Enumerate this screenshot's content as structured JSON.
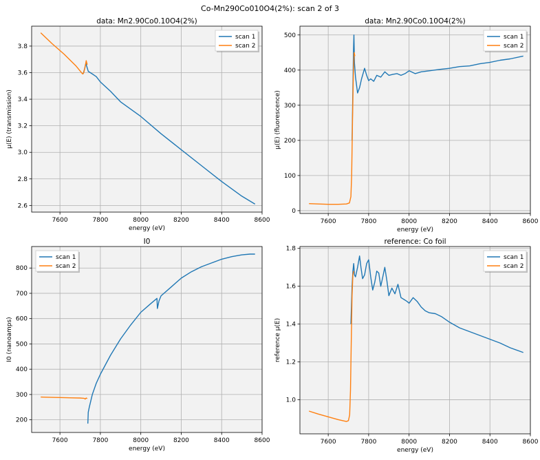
{
  "suptitle": "Co-Mn290Co010O4(2%): scan 2 of 3",
  "colors": {
    "scan1": "#1f77b4",
    "scan2": "#ff7f0e",
    "plot_bg": "#f2f2f2",
    "grid": "#b0b0b0"
  },
  "chart_data": [
    {
      "type": "line",
      "title": "data: Mn2.90Co0.10O4(2%)",
      "xlabel": "energy (eV)",
      "ylabel": "μ(E) (transmission)",
      "xlim": [
        7460,
        8600
      ],
      "ylim": [
        2.55,
        3.95
      ],
      "xticks": [
        7600,
        7800,
        8000,
        8200,
        8400,
        8600
      ],
      "yticks": [
        2.6,
        2.8,
        3.0,
        3.2,
        3.4,
        3.6,
        3.8
      ],
      "ytick_labels": [
        "2.6",
        "2.8",
        "3.0",
        "3.2",
        "3.4",
        "3.6",
        "3.8"
      ],
      "grid": true,
      "legend": {
        "placement": "top-right",
        "entries": [
          "scan 1",
          "scan 2"
        ]
      },
      "series": [
        {
          "name": "scan 1",
          "x": [
            7715,
            7722,
            7728,
            7740,
            7760,
            7780,
            7800,
            7850,
            7900,
            8000,
            8100,
            8200,
            8300,
            8400,
            8500,
            8565
          ],
          "y": [
            3.59,
            3.63,
            3.67,
            3.61,
            3.59,
            3.57,
            3.53,
            3.46,
            3.38,
            3.27,
            3.14,
            3.02,
            2.9,
            2.78,
            2.67,
            2.61
          ]
        },
        {
          "name": "scan 2",
          "x": [
            7505,
            7560,
            7620,
            7680,
            7712,
            7718,
            7724,
            7730,
            7735
          ],
          "y": [
            3.9,
            3.82,
            3.74,
            3.65,
            3.59,
            3.6,
            3.64,
            3.69,
            3.66
          ]
        }
      ]
    },
    {
      "type": "line",
      "title": "data: Mn2.90Co0.10O4(2%)",
      "xlabel": "energy (eV)",
      "ylabel": "μ(E) (fluorescence)",
      "xlim": [
        7460,
        8600
      ],
      "ylim": [
        -8,
        525
      ],
      "xticks": [
        7600,
        7800,
        8000,
        8200,
        8400,
        8600
      ],
      "yticks": [
        0,
        100,
        200,
        300,
        400,
        500
      ],
      "ytick_labels": [
        "0",
        "100",
        "200",
        "300",
        "400",
        "500"
      ],
      "grid": true,
      "legend": {
        "placement": "top-right",
        "entries": [
          "scan 1",
          "scan 2"
        ]
      },
      "series": [
        {
          "name": "scan 1",
          "x": [
            7718,
            7722,
            7725,
            7727,
            7730,
            7735,
            7745,
            7755,
            7765,
            7780,
            7790,
            7800,
            7810,
            7825,
            7840,
            7860,
            7880,
            7900,
            7920,
            7940,
            7960,
            7980,
            8000,
            8030,
            8060,
            8100,
            8150,
            8200,
            8250,
            8300,
            8350,
            8400,
            8450,
            8500,
            8565
          ],
          "y": [
            200,
            350,
            460,
            500,
            420,
            380,
            335,
            350,
            375,
            405,
            385,
            370,
            375,
            368,
            385,
            380,
            395,
            385,
            388,
            390,
            385,
            390,
            398,
            390,
            395,
            398,
            402,
            405,
            410,
            412,
            418,
            422,
            428,
            432,
            440
          ]
        },
        {
          "name": "scan 2",
          "x": [
            7505,
            7550,
            7600,
            7650,
            7690,
            7705,
            7712,
            7716,
            7720,
            7724,
            7728,
            7732
          ],
          "y": [
            20,
            19,
            18,
            18,
            19,
            22,
            40,
            100,
            250,
            380,
            450,
            440
          ]
        }
      ]
    },
    {
      "type": "line",
      "title": "I0",
      "xlabel": "energy (eV)",
      "ylabel": "I0 (nanoamps)",
      "xlim": [
        7460,
        8600
      ],
      "ylim": [
        150,
        885
      ],
      "xticks": [
        7600,
        7800,
        8000,
        8200,
        8400,
        8600
      ],
      "yticks": [
        200,
        300,
        400,
        500,
        600,
        700,
        800
      ],
      "ytick_labels": [
        "200",
        "300",
        "400",
        "500",
        "600",
        "700",
        "800"
      ],
      "grid": true,
      "legend": {
        "placement": "top-left",
        "entries": [
          "scan 1",
          "scan 2"
        ]
      },
      "series": [
        {
          "name": "scan 1",
          "x": [
            7738,
            7740,
            7745,
            7760,
            7780,
            7800,
            7850,
            7900,
            7950,
            8000,
            8050,
            8080,
            8082,
            8090,
            8100,
            8150,
            8200,
            8250,
            8300,
            8350,
            8400,
            8450,
            8500,
            8540,
            8565
          ],
          "y": [
            185,
            230,
            250,
            300,
            345,
            380,
            455,
            520,
            575,
            625,
            660,
            680,
            640,
            670,
            690,
            725,
            760,
            785,
            805,
            820,
            835,
            845,
            852,
            855,
            855
          ]
        },
        {
          "name": "scan 2",
          "x": [
            7505,
            7550,
            7600,
            7650,
            7700,
            7720,
            7725,
            7730,
            7735
          ],
          "y": [
            290,
            289,
            288,
            287,
            286,
            285,
            282,
            286,
            284
          ]
        }
      ]
    },
    {
      "type": "line",
      "title": "reference: Co foil",
      "xlabel": "energy (eV)",
      "ylabel": "reference μ(E)",
      "xlim": [
        7460,
        8600
      ],
      "ylim": [
        0.82,
        1.81
      ],
      "xticks": [
        7600,
        7800,
        8000,
        8200,
        8400,
        8600
      ],
      "yticks": [
        1.0,
        1.2,
        1.4,
        1.6,
        1.8
      ],
      "ytick_labels": [
        "1.0",
        "1.2",
        "1.4",
        "1.6",
        "1.8"
      ],
      "grid": true,
      "legend": {
        "placement": "top-right",
        "entries": [
          "scan 1",
          "scan 2"
        ]
      },
      "series": [
        {
          "name": "scan 1",
          "x": [
            7712,
            7718,
            7722,
            7726,
            7730,
            7735,
            7745,
            7755,
            7762,
            7770,
            7780,
            7790,
            7800,
            7810,
            7820,
            7830,
            7840,
            7850,
            7860,
            7870,
            7880,
            7890,
            7900,
            7915,
            7930,
            7945,
            7960,
            7975,
            7990,
            8000,
            8020,
            8040,
            8060,
            8080,
            8100,
            8130,
            8160,
            8200,
            8250,
            8300,
            8350,
            8400,
            8450,
            8500,
            8565
          ],
          "y": [
            1.4,
            1.6,
            1.68,
            1.72,
            1.66,
            1.65,
            1.7,
            1.76,
            1.7,
            1.64,
            1.66,
            1.72,
            1.74,
            1.65,
            1.58,
            1.62,
            1.68,
            1.67,
            1.6,
            1.65,
            1.7,
            1.63,
            1.55,
            1.59,
            1.56,
            1.61,
            1.54,
            1.53,
            1.52,
            1.51,
            1.54,
            1.52,
            1.49,
            1.47,
            1.46,
            1.455,
            1.44,
            1.41,
            1.38,
            1.36,
            1.34,
            1.32,
            1.3,
            1.275,
            1.25
          ]
        },
        {
          "name": "scan 2",
          "x": [
            7505,
            7550,
            7600,
            7650,
            7690,
            7700,
            7706,
            7710,
            7714,
            7718,
            7722,
            7726
          ],
          "y": [
            0.94,
            0.925,
            0.91,
            0.895,
            0.885,
            0.89,
            0.92,
            1.05,
            1.3,
            1.55,
            1.66,
            1.68
          ]
        }
      ]
    }
  ]
}
